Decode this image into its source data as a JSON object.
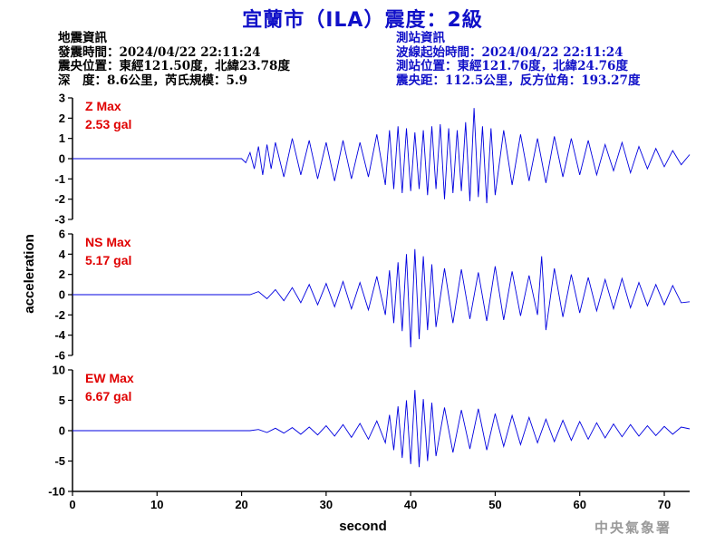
{
  "title": "宜蘭市（ILA）震度：2級",
  "quake_info": {
    "heading": "地震資訊",
    "origin_time": "發震時間：2024/04/22 22:11:24",
    "epicenter": "震央位置：東經121.50度，北緯23.78度",
    "depth_magnitude": "深　度：8.6公里，芮氏規模：5.9"
  },
  "station_info": {
    "heading": "測站資訊",
    "wave_start": "波線起始時間：2024/04/22 22:11:24",
    "location": "測站位置：東經121.76度，北緯24.76度",
    "distance": "震央距：112.5公里，反方位角：193.27度"
  },
  "watermark": "中央氣象署",
  "colors": {
    "title": "#1010c8",
    "trace": "#0000e0",
    "max_label": "#e00000",
    "station_text": "#1010c8"
  },
  "chart_data": {
    "type": "line",
    "xlabel": "second",
    "ylabel": "acceleration",
    "xlim": [
      0,
      73
    ],
    "xticks": [
      0,
      10,
      20,
      30,
      40,
      50,
      60,
      70
    ],
    "panels": [
      {
        "name": "Z Max",
        "max_label": "2.53 gal",
        "ylim": [
          -3,
          3
        ],
        "yticks": [
          3,
          2,
          1,
          0,
          -1,
          -2,
          -3
        ],
        "x": [
          0,
          20,
          20.5,
          21,
          21.5,
          22,
          22.5,
          23,
          23.5,
          24,
          25,
          26,
          27,
          28,
          29,
          30,
          31,
          32,
          33,
          34,
          35,
          36,
          37,
          37.5,
          38,
          38.5,
          39,
          39.5,
          40,
          40.5,
          41,
          41.5,
          42,
          42.5,
          43,
          43.5,
          44,
          44.5,
          45,
          45.5,
          46,
          46.5,
          47,
          47.5,
          48,
          48.5,
          49,
          49.5,
          50,
          51,
          52,
          53,
          54,
          55,
          56,
          57,
          58,
          59,
          60,
          61,
          62,
          63,
          64,
          65,
          66,
          67,
          68,
          69,
          70,
          71,
          72,
          73
        ],
        "y": [
          0,
          0,
          -0.2,
          0.3,
          -0.5,
          0.6,
          -0.8,
          0.7,
          -0.5,
          0.8,
          -0.9,
          1.0,
          -0.8,
          0.9,
          -1.0,
          0.8,
          -1.1,
          0.9,
          -1.0,
          0.8,
          -0.9,
          1.2,
          -1.3,
          1.4,
          -1.5,
          1.6,
          -1.7,
          1.5,
          -1.6,
          1.3,
          -1.5,
          1.4,
          -1.8,
          1.6,
          -1.5,
          1.7,
          -2.0,
          1.5,
          -1.7,
          1.4,
          -1.6,
          1.8,
          -2.1,
          2.5,
          -1.9,
          1.6,
          -2.2,
          1.5,
          -1.8,
          1.4,
          -1.3,
          1.2,
          -1.1,
          1.0,
          -1.2,
          1.1,
          -0.9,
          1.0,
          -0.8,
          0.9,
          -0.8,
          0.7,
          -0.6,
          0.8,
          -0.7,
          0.6,
          -0.5,
          0.5,
          -0.4,
          0.4,
          -0.3,
          0.2
        ]
      },
      {
        "name": "NS Max",
        "max_label": "5.17 gal",
        "ylim": [
          -6,
          6
        ],
        "yticks": [
          6,
          4,
          2,
          0,
          -2,
          -4,
          -6
        ],
        "x": [
          0,
          21,
          22,
          23,
          24,
          25,
          26,
          27,
          28,
          29,
          30,
          31,
          32,
          33,
          34,
          35,
          36,
          37,
          37.5,
          38,
          38.5,
          39,
          39.5,
          40,
          40.5,
          41,
          41.5,
          42,
          42.5,
          43,
          44,
          45,
          46,
          47,
          48,
          49,
          50,
          51,
          52,
          53,
          54,
          55,
          55.5,
          56,
          57,
          58,
          59,
          60,
          61,
          62,
          63,
          64,
          65,
          66,
          67,
          68,
          69,
          70,
          71,
          72,
          73
        ],
        "y": [
          0,
          0,
          0.3,
          -0.4,
          0.5,
          -0.6,
          0.7,
          -0.8,
          1.0,
          -1.0,
          1.1,
          -1.2,
          1.3,
          -1.4,
          1.2,
          -1.5,
          1.8,
          -2.0,
          2.4,
          -2.8,
          3.2,
          -3.6,
          4.0,
          -5.2,
          4.5,
          -4.4,
          3.8,
          -3.5,
          3.0,
          -3.2,
          2.6,
          -2.8,
          2.5,
          -2.4,
          2.2,
          -2.6,
          2.8,
          -2.5,
          2.3,
          -2.1,
          1.9,
          -2.0,
          3.8,
          -3.5,
          2.6,
          -2.2,
          2.0,
          -1.8,
          1.7,
          -1.6,
          1.5,
          -1.4,
          1.6,
          -1.3,
          1.2,
          -1.1,
          1.0,
          -1.0,
          0.9,
          -0.8,
          -0.7
        ]
      },
      {
        "name": "EW Max",
        "max_label": "6.67 gal",
        "ylim": [
          -10,
          10
        ],
        "yticks": [
          10,
          5,
          0,
          -5,
          -10
        ],
        "x": [
          0,
          21,
          22,
          23,
          24,
          25,
          26,
          27,
          28,
          29,
          30,
          31,
          32,
          33,
          34,
          35,
          36,
          37,
          37.5,
          38,
          38.5,
          39,
          39.5,
          40,
          40.5,
          41,
          41.5,
          42,
          42.5,
          43,
          44,
          45,
          46,
          47,
          48,
          49,
          50,
          51,
          52,
          53,
          54,
          55,
          56,
          57,
          58,
          59,
          60,
          61,
          62,
          63,
          64,
          65,
          66,
          67,
          68,
          69,
          70,
          71,
          72,
          73
        ],
        "y": [
          0,
          0,
          0.2,
          -0.3,
          0.4,
          -0.4,
          0.5,
          -0.6,
          0.6,
          -0.7,
          0.8,
          -0.9,
          1.0,
          -1.1,
          1.2,
          -1.4,
          1.6,
          -2.0,
          2.6,
          -3.2,
          4.0,
          -4.5,
          5.0,
          -5.5,
          6.7,
          -6.0,
          5.2,
          -5.0,
          4.6,
          -4.2,
          3.8,
          -3.6,
          3.4,
          -3.0,
          3.6,
          -3.2,
          2.8,
          -2.6,
          2.5,
          -2.3,
          2.2,
          -2.0,
          1.9,
          -1.8,
          1.7,
          -1.6,
          1.5,
          -1.4,
          1.3,
          -1.2,
          1.1,
          -1.0,
          1.0,
          -0.9,
          0.8,
          -0.8,
          0.7,
          -0.6,
          0.6,
          0.3
        ]
      }
    ]
  }
}
